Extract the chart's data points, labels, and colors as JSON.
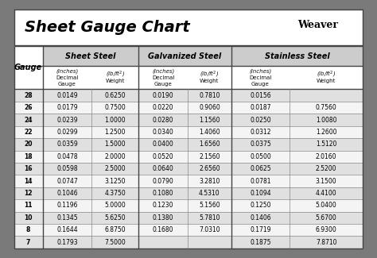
{
  "title": "Sheet Gauge Chart",
  "bg_outer": "#7a7a7a",
  "bg_white": "#ffffff",
  "header_bg": "#cccccc",
  "row_odd": "#e0e0e0",
  "row_even": "#f4f4f4",
  "border_color": "#444444",
  "text_dark": "#111111",
  "gauges": [
    28,
    26,
    24,
    22,
    20,
    18,
    16,
    14,
    12,
    11,
    10,
    8,
    7
  ],
  "sheet_decimal": [
    "0.0149",
    "0.0179",
    "0.0239",
    "0.0299",
    "0.0359",
    "0.0478",
    "0.0598",
    "0.0747",
    "0.1046",
    "0.1196",
    "0.1345",
    "0.1644",
    "0.1793"
  ],
  "sheet_weight": [
    "0.6250",
    "0.7500",
    "1.0000",
    "1.2500",
    "1.5000",
    "2.0000",
    "2.5000",
    "3.1250",
    "4.3750",
    "5.0000",
    "5.6250",
    "6.8750",
    "7.5000"
  ],
  "galv_decimal": [
    "0.0190",
    "0.0220",
    "0.0280",
    "0.0340",
    "0.0400",
    "0.0520",
    "0.0640",
    "0.0790",
    "0.1080",
    "0.1230",
    "0.1380",
    "0.1680",
    ""
  ],
  "galv_weight": [
    "0.7810",
    "0.9060",
    "1.1560",
    "1.4060",
    "1.6560",
    "2.1560",
    "2.6560",
    "3.2810",
    "4.5310",
    "5.1560",
    "5.7810",
    "7.0310",
    ""
  ],
  "ss_decimal": [
    "0.0156",
    "0.0187",
    "0.0250",
    "0.0312",
    "0.0375",
    "0.0500",
    "0.0625",
    "0.0781",
    "0.1094",
    "0.1250",
    "0.1406",
    "0.1719",
    "0.1875"
  ],
  "ss_weight": [
    "",
    "0.7560",
    "1.0080",
    "1.2600",
    "1.5120",
    "2.0160",
    "2.5200",
    "3.1500",
    "4.4100",
    "5.0400",
    "5.6700",
    "6.9300",
    "7.8710"
  ],
  "fig_w": 4.74,
  "fig_h": 3.25,
  "dpi": 100
}
